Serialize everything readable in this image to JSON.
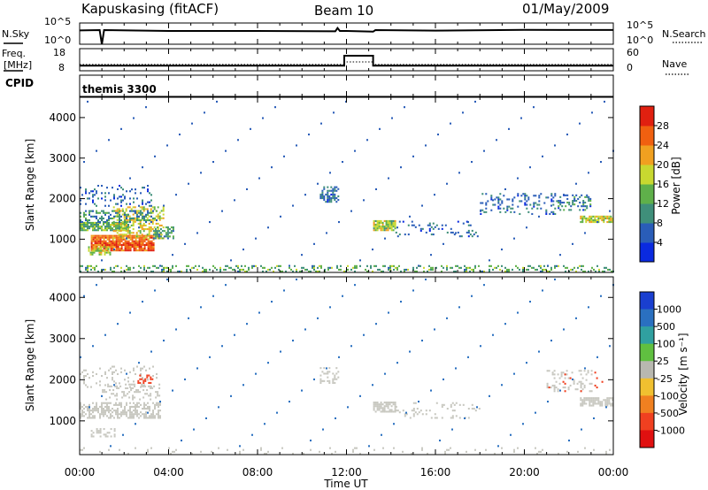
{
  "header": {
    "station": "Kapuskasing (fitACF)",
    "beam": "Beam 10",
    "date": "01/May/2009"
  },
  "noise_panel": {
    "left_label": "N.Sky",
    "right_label": "N.Search",
    "left_ticks": [
      "10^5",
      "10^0"
    ],
    "right_ticks": [
      "10^5",
      "10^0"
    ]
  },
  "freq_panel": {
    "left_label_1": "Freq.",
    "left_label_2": "[MHz]",
    "right_label": "Nave",
    "left_ticks": [
      "18",
      "8"
    ],
    "right_ticks": [
      "60",
      "0"
    ]
  },
  "cpid": {
    "label": "CPID",
    "program": "themis 3300"
  },
  "power_panel": {
    "ylabel": "Slant Range [km]",
    "yticks": [
      "4000",
      "3000",
      "2000",
      "1000"
    ],
    "colorbar_label": "Power [dB]",
    "colorbar_ticks": [
      "28",
      "24",
      "20",
      "16",
      "12",
      "8",
      "4"
    ]
  },
  "velocity_panel": {
    "ylabel": "Slant Range [km]",
    "yticks": [
      "4000",
      "3000",
      "2000",
      "1000"
    ],
    "colorbar_label": "Velocity [m s⁻¹]",
    "colorbar_ticks": [
      "1000",
      "500",
      "100",
      "25",
      "-25",
      "-100",
      "-500",
      "-1000"
    ]
  },
  "xaxis": {
    "label": "Time UT",
    "ticks": [
      "00:00",
      "04:00",
      "08:00",
      "12:00",
      "16:00",
      "20:00",
      "00:00"
    ]
  },
  "colors": {
    "power_scale": [
      "#0a2ae0",
      "#2a5db8",
      "#3f8f7a",
      "#5fb04a",
      "#c8d830",
      "#f0a020",
      "#f06010",
      "#e02010"
    ],
    "velocity_scale": [
      "#1a3fd0",
      "#2a70c0",
      "#30a0a0",
      "#60c040",
      "#b8b8b0",
      "#f0c030",
      "#f08020",
      "#f04020",
      "#e01010"
    ],
    "velocity_ground": "#c8c8c0"
  },
  "chart_data": [
    {
      "type": "line",
      "name": "noise",
      "x_range_hours": [
        0,
        24
      ],
      "y_scale": "log",
      "ylim": [
        1,
        100000
      ],
      "series": [
        {
          "name": "N.Sky",
          "x": [
            0,
            0.9,
            1.0,
            1.1,
            4,
            8,
            11.5,
            11.6,
            11.7,
            12,
            13.2,
            13.3,
            16,
            20,
            24
          ],
          "y": [
            2000,
            2000,
            1,
            2000,
            1500,
            1200,
            1200,
            6000,
            1500,
            1200,
            1000,
            2000,
            1800,
            2200,
            2500
          ]
        }
      ]
    },
    {
      "type": "line",
      "name": "frequency",
      "x_range_hours": [
        0,
        24
      ],
      "ylim": [
        8,
        18
      ],
      "series": [
        {
          "name": "Freq.",
          "x": [
            0,
            11.9,
            11.9,
            13.2,
            13.2,
            24
          ],
          "y": [
            10.3,
            10.3,
            14.8,
            14.8,
            10.3,
            10.3
          ]
        },
        {
          "name": "Nave",
          "x": [
            0,
            11.9,
            11.9,
            13.2,
            13.2,
            24
          ],
          "y": [
            17,
            17,
            24,
            24,
            17,
            17
          ],
          "axis": "right",
          "ylim": [
            0,
            60
          ]
        }
      ]
    },
    {
      "type": "heatmap",
      "name": "power",
      "x_range_hours": [
        0,
        24
      ],
      "ylim": [
        180,
        4500
      ],
      "zlim": [
        0,
        30
      ],
      "regions": [
        {
          "t0": 0.0,
          "t1": 2.2,
          "r0": 1200,
          "r1": 1400,
          "z": 14,
          "density": 0.85
        },
        {
          "t0": 0.5,
          "t1": 3.3,
          "r0": 700,
          "r1": 1100,
          "z": 26,
          "density": 0.9
        },
        {
          "t0": 0.3,
          "t1": 1.4,
          "r0": 600,
          "r1": 800,
          "z": 16,
          "density": 0.6
        },
        {
          "t0": 1.5,
          "t1": 3.8,
          "r0": 1000,
          "r1": 1800,
          "z": 18,
          "density": 0.45
        },
        {
          "t0": 0.0,
          "t1": 3.5,
          "r0": 1400,
          "r1": 1700,
          "z": 9,
          "density": 0.45
        },
        {
          "t0": 0.0,
          "t1": 3.2,
          "r0": 1800,
          "r1": 2300,
          "z": 6,
          "density": 0.25
        },
        {
          "t0": 3.3,
          "t1": 4.2,
          "r0": 1000,
          "r1": 1300,
          "z": 10,
          "density": 0.6
        },
        {
          "t0": 10.8,
          "t1": 11.6,
          "r0": 1900,
          "r1": 2300,
          "z": 7,
          "density": 0.6
        },
        {
          "t0": 13.2,
          "t1": 14.2,
          "r0": 1200,
          "r1": 1450,
          "z": 16,
          "density": 0.9
        },
        {
          "t0": 14.2,
          "t1": 18.0,
          "r0": 1050,
          "r1": 1450,
          "z": 6,
          "density": 0.2
        },
        {
          "t0": 18.0,
          "t1": 21.5,
          "r0": 1600,
          "r1": 2100,
          "z": 6,
          "density": 0.3
        },
        {
          "t0": 21.5,
          "t1": 23.0,
          "r0": 1700,
          "r1": 2100,
          "z": 8,
          "density": 0.4
        },
        {
          "t0": 22.5,
          "t1": 24.0,
          "r0": 1400,
          "r1": 1550,
          "z": 17,
          "density": 0.85
        },
        {
          "t0": 0.0,
          "t1": 24.0,
          "r0": 180,
          "r1": 320,
          "z": 12,
          "density": 0.35
        },
        {
          "t0": 0.0,
          "t1": 24.0,
          "r0": 320,
          "r1": 4500,
          "z": 6,
          "density": 0.004
        }
      ]
    },
    {
      "type": "heatmap",
      "name": "velocity",
      "x_range_hours": [
        0,
        24
      ],
      "ylim": [
        180,
        4500
      ],
      "zlim": [
        -1000,
        1000
      ],
      "regions": [
        {
          "t0": 0.0,
          "t1": 3.6,
          "r0": 1050,
          "r1": 1450,
          "z": 0,
          "density": 0.6
        },
        {
          "t0": 1.0,
          "t1": 3.6,
          "r0": 1500,
          "r1": 1900,
          "z": 0,
          "density": 0.35
        },
        {
          "t0": 0.0,
          "t1": 3.5,
          "r0": 1800,
          "r1": 2300,
          "z": 0,
          "density": 0.2
        },
        {
          "t0": 0.5,
          "t1": 1.6,
          "r0": 600,
          "r1": 800,
          "z": 0,
          "density": 0.5
        },
        {
          "t0": 2.6,
          "t1": 3.3,
          "r0": 1900,
          "r1": 2100,
          "z": -150,
          "density": 0.4
        },
        {
          "t0": 10.8,
          "t1": 11.6,
          "r0": 1900,
          "r1": 2300,
          "z": 0,
          "density": 0.4
        },
        {
          "t0": 13.2,
          "t1": 14.2,
          "r0": 1200,
          "r1": 1450,
          "z": 0,
          "density": 0.8
        },
        {
          "t0": 14.2,
          "t1": 18.0,
          "r0": 1050,
          "r1": 1450,
          "z": 0,
          "density": 0.2
        },
        {
          "t0": 21.0,
          "t1": 23.0,
          "r0": 1700,
          "r1": 2200,
          "z": 0,
          "density": 0.3
        },
        {
          "t0": 21.0,
          "t1": 23.5,
          "r0": 1700,
          "r1": 2200,
          "z": -400,
          "density": 0.05
        },
        {
          "t0": 22.5,
          "t1": 24.0,
          "r0": 1350,
          "r1": 1550,
          "z": 0,
          "density": 0.75
        },
        {
          "t0": 0.0,
          "t1": 24.0,
          "r0": 180,
          "r1": 320,
          "z": 0,
          "density": 0.1
        },
        {
          "t0": 0.0,
          "t1": 24.0,
          "r0": 320,
          "r1": 4500,
          "z": 300,
          "density": 0.003
        }
      ]
    }
  ]
}
